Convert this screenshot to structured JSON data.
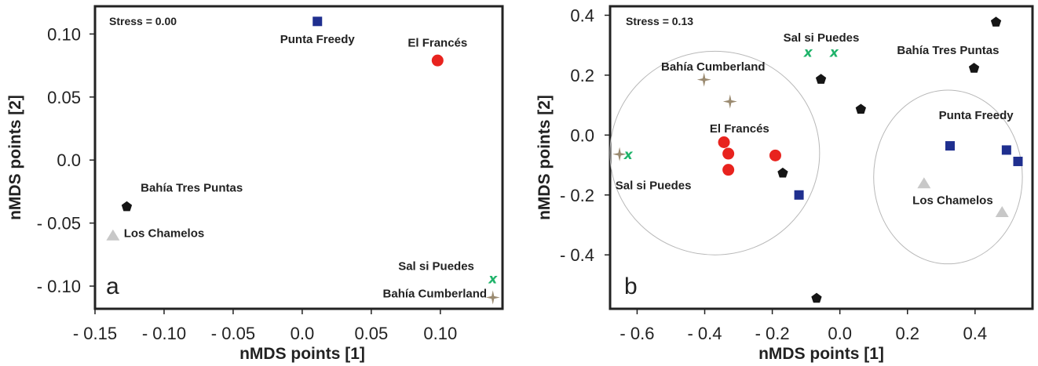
{
  "colors": {
    "square": "#1f2f8f",
    "circle": "#e8231e",
    "pentagon": "#151515",
    "triangle": "#c8c8c8",
    "star": "#9a8a70",
    "x": "#1fb36a"
  },
  "chart_data": [
    {
      "type": "scatter",
      "panel_letter": "a",
      "stress": "Stress = 0.00",
      "xlabel": "nMDS points [1]",
      "ylabel": "nMDS points [2]",
      "xlim": [
        -0.15,
        0.145
      ],
      "ylim": [
        -0.118,
        0.122
      ],
      "xticks": [
        -0.15,
        -0.1,
        -0.05,
        0.0,
        0.05,
        0.1
      ],
      "xtick_labels": [
        "- 0.15",
        "- 0.10",
        "- 0.05",
        "0.0",
        "0.05",
        "0.10"
      ],
      "yticks": [
        0.1,
        0.05,
        0.0,
        -0.05,
        -0.1
      ],
      "ytick_labels": [
        "0.10",
        "0.05",
        "0.0",
        "- 0.05",
        "- 0.10"
      ],
      "points": [
        {
          "site": "Punta Freedy",
          "x": 0.011,
          "y": 0.11,
          "marker": "square"
        },
        {
          "site": "El Francés",
          "x": 0.098,
          "y": 0.079,
          "marker": "circle"
        },
        {
          "site": "Bahía Tres Puntas",
          "x": -0.127,
          "y": -0.037,
          "marker": "pentagon"
        },
        {
          "site": "Los Chamelos",
          "x": -0.137,
          "y": -0.06,
          "marker": "triangle"
        },
        {
          "site": "Sal si Puedes",
          "x": 0.138,
          "y": -0.094,
          "marker": "x"
        },
        {
          "site": "Bahía Cumberland",
          "x": 0.138,
          "y": -0.109,
          "marker": "star"
        }
      ],
      "labels": [
        {
          "text": "Punta Freedy",
          "x": 0.011,
          "y": 0.096
        },
        {
          "text": "El Francés",
          "x": 0.098,
          "y": 0.093
        },
        {
          "text": "Bahía Tres Puntas",
          "x": -0.08,
          "y": -0.022
        },
        {
          "text": "Los Chamelos",
          "x": -0.1,
          "y": -0.058
        },
        {
          "text": "Sal si Puedes",
          "x": 0.097,
          "y": -0.084
        },
        {
          "text": "Bahía Cumberland",
          "x": 0.096,
          "y": -0.106
        }
      ]
    },
    {
      "type": "scatter",
      "panel_letter": "b",
      "stress": "Stress = 0.13",
      "xlabel": "nMDS points [1]",
      "ylabel": "nMDS points [2]",
      "xlim": [
        -0.68,
        0.57
      ],
      "ylim": [
        -0.58,
        0.43
      ],
      "xticks": [
        -0.6,
        -0.4,
        -0.2,
        0.0,
        0.2,
        0.4
      ],
      "xtick_labels": [
        "- 0.6",
        "- 0.4",
        "- 0.2",
        "0.0",
        "0.2",
        "0.4"
      ],
      "yticks": [
        0.4,
        0.2,
        0.0,
        -0.2,
        -0.4
      ],
      "ytick_labels": [
        "0.4",
        "0.2",
        "0.0",
        "- 0.2",
        "- 0.4"
      ],
      "ellipses": [
        {
          "cx": -0.37,
          "cy": -0.06,
          "rx": 0.31,
          "ry": 0.34
        },
        {
          "cx": 0.32,
          "cy": -0.14,
          "rx": 0.22,
          "ry": 0.29
        }
      ],
      "points": [
        {
          "site": "Bahía Cumberland",
          "x": -0.402,
          "y": 0.185,
          "marker": "star"
        },
        {
          "site": "Bahía Cumberland",
          "x": -0.325,
          "y": 0.112,
          "marker": "star"
        },
        {
          "site": "Bahía Cumberland",
          "x": -0.652,
          "y": -0.064,
          "marker": "star"
        },
        {
          "site": "Sal si Puedes",
          "x": -0.626,
          "y": -0.064,
          "marker": "x"
        },
        {
          "site": "Sal si Puedes",
          "x": -0.094,
          "y": 0.277,
          "marker": "x"
        },
        {
          "site": "Sal si Puedes",
          "x": -0.017,
          "y": 0.277,
          "marker": "x"
        },
        {
          "site": "El Francés",
          "x": -0.343,
          "y": -0.024,
          "marker": "circle"
        },
        {
          "site": "El Francés",
          "x": -0.33,
          "y": -0.062,
          "marker": "circle"
        },
        {
          "site": "El Francés",
          "x": -0.33,
          "y": -0.116,
          "marker": "circle"
        },
        {
          "site": "El Francés",
          "x": -0.191,
          "y": -0.068,
          "marker": "circle"
        },
        {
          "site": "Bahía Tres Puntas",
          "x": -0.169,
          "y": -0.127,
          "marker": "pentagon"
        },
        {
          "site": "Bahía Tres Puntas",
          "x": -0.056,
          "y": 0.186,
          "marker": "pentagon"
        },
        {
          "site": "Bahía Tres Puntas",
          "x": 0.062,
          "y": 0.086,
          "marker": "pentagon"
        },
        {
          "site": "Bahía Tres Puntas",
          "x": 0.397,
          "y": 0.223,
          "marker": "pentagon"
        },
        {
          "site": "Bahía Tres Puntas",
          "x": 0.462,
          "y": 0.377,
          "marker": "pentagon"
        },
        {
          "site": "Bahía Tres Puntas",
          "x": -0.069,
          "y": -0.545,
          "marker": "pentagon"
        },
        {
          "site": "Punta Freedy",
          "x": -0.121,
          "y": -0.2,
          "marker": "square"
        },
        {
          "site": "Punta Freedy",
          "x": 0.326,
          "y": -0.036,
          "marker": "square"
        },
        {
          "site": "Punta Freedy",
          "x": 0.493,
          "y": -0.05,
          "marker": "square"
        },
        {
          "site": "Punta Freedy",
          "x": 0.527,
          "y": -0.088,
          "marker": "square"
        },
        {
          "site": "Los Chamelos",
          "x": 0.249,
          "y": -0.162,
          "marker": "triangle"
        },
        {
          "site": "Los Chamelos",
          "x": 0.48,
          "y": -0.258,
          "marker": "triangle"
        }
      ],
      "labels": [
        {
          "text": "Sal si Puedes",
          "x": -0.055,
          "y": 0.325
        },
        {
          "text": "Bahía Tres Puntas",
          "x": 0.32,
          "y": 0.283
        },
        {
          "text": "Bahía Cumberland",
          "x": -0.375,
          "y": 0.228
        },
        {
          "text": "El Francés",
          "x": -0.297,
          "y": 0.022
        },
        {
          "text": "Punta Freedy",
          "x": 0.403,
          "y": 0.066
        },
        {
          "text": "Sal si Puedes",
          "x": -0.552,
          "y": -0.168
        },
        {
          "text": "Los Chamelos",
          "x": 0.334,
          "y": -0.218
        }
      ]
    }
  ]
}
